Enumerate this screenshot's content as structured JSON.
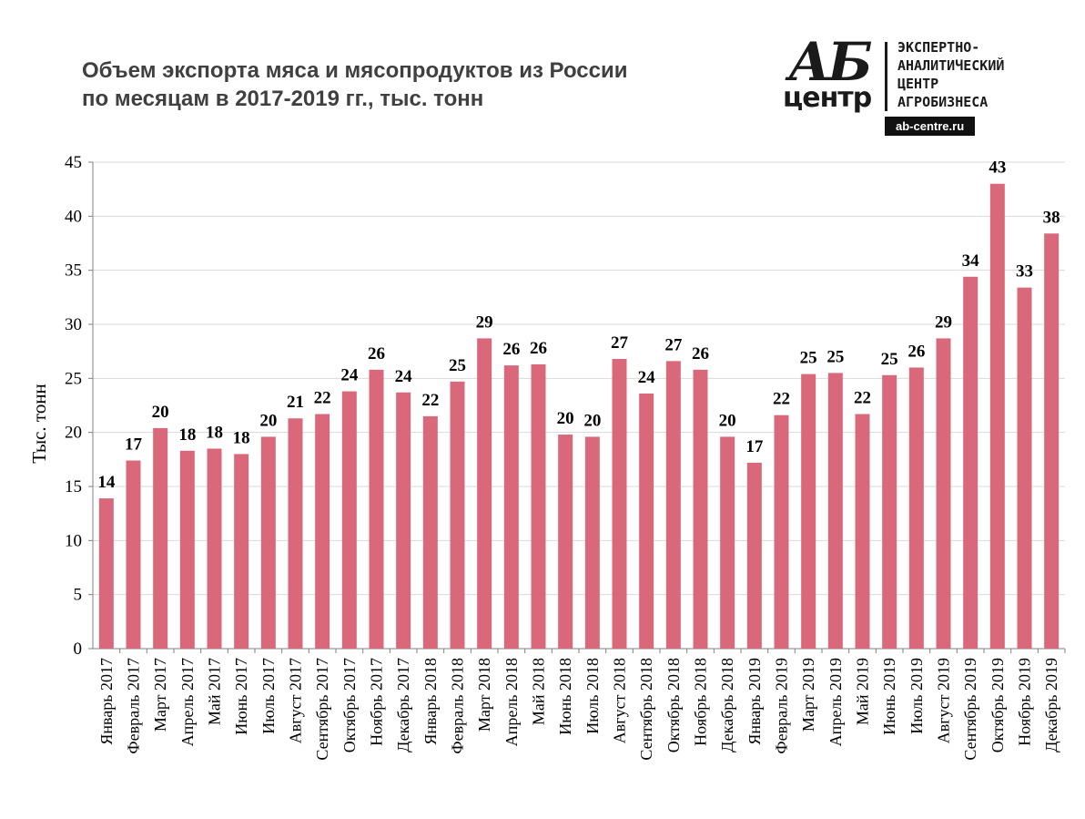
{
  "title": {
    "line1": "Объем экспорта мяса и мясопродуктов из России",
    "line2": "по месяцам в 2017-2019 гг., тыс. тонн"
  },
  "logo": {
    "mark_top": "АБ",
    "mark_bottom": "центр",
    "text_line1": "ЭКСПЕРТНО-",
    "text_line2": "АНАЛИТИЧЕСКИЙ",
    "text_line3": "ЦЕНТР",
    "text_line4": "АГРОБИЗНЕСА",
    "url": "ab-centre.ru"
  },
  "chart_data": {
    "type": "bar",
    "title": "Объем экспорта мяса и мясопродуктов из России по месяцам в 2017-2019 гг., тыс. тонн",
    "ylabel": "Тыс. тонн",
    "xlabel": "",
    "ylim": [
      0,
      45
    ],
    "yticks": [
      0,
      5,
      10,
      15,
      20,
      25,
      30,
      35,
      40,
      45
    ],
    "grid": true,
    "bar_color": "#d9687a",
    "categories": [
      "Январь 2017",
      "Февраль 2017",
      "Март 2017",
      "Апрель 2017",
      "Май 2017",
      "Июнь 2017",
      "Июль 2017",
      "Август 2017",
      "Сентябрь 2017",
      "Октябрь 2017",
      "Ноябрь 2017",
      "Декабрь 2017",
      "Январь 2018",
      "Февраль 2018",
      "Март 2018",
      "Апрель 2018",
      "Май 2018",
      "Июнь 2018",
      "Июль 2018",
      "Август 2018",
      "Сентябрь 2018",
      "Октябрь 2018",
      "Ноябрь 2018",
      "Декабрь 2018",
      "Январь 2019",
      "Февраль 2019",
      "Март 2019",
      "Апрель 2019",
      "Май 2019",
      "Июнь 2019",
      "Июль 2019",
      "Август 2019",
      "Сентябрь 2019",
      "Октябрь 2019",
      "Ноябрь 2019",
      "Декабрь 2019"
    ],
    "values": [
      13.9,
      17.4,
      20.4,
      18.3,
      18.5,
      18.0,
      19.6,
      21.3,
      21.7,
      23.8,
      25.8,
      23.7,
      21.5,
      24.7,
      28.7,
      26.2,
      26.3,
      19.8,
      19.6,
      26.8,
      23.6,
      26.6,
      25.8,
      19.6,
      17.2,
      21.6,
      25.4,
      25.5,
      21.7,
      25.3,
      26.0,
      28.7,
      34.4,
      43.0,
      33.4,
      38.4
    ],
    "data_labels": [
      "14",
      "17",
      "20",
      "18",
      "18",
      "18",
      "20",
      "21",
      "22",
      "24",
      "26",
      "24",
      "22",
      "25",
      "29",
      "26",
      "26",
      "20",
      "20",
      "27",
      "24",
      "27",
      "26",
      "20",
      "17",
      "22",
      "25",
      "25",
      "22",
      "25",
      "26",
      "29",
      "34",
      "43",
      "33",
      "38"
    ]
  }
}
